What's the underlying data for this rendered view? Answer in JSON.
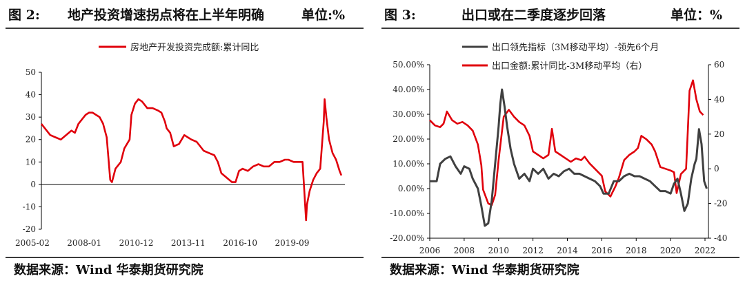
{
  "figures": [
    {
      "number": "图 2:",
      "title": "地产投资增速拐点将在上半年明确",
      "unit": "单位:%",
      "source": "数据来源：Wind 华泰期货研究院"
    },
    {
      "number": "图 3:",
      "title": "出口或在二季度逐步回落",
      "unit": "单位：%",
      "source": "数据来源：Wind 华泰期货研究院"
    }
  ],
  "chart_data": [
    {
      "type": "line",
      "ylim": [
        -20,
        50
      ],
      "y_ticks": [
        "50",
        "40",
        "30",
        "20",
        "10",
        "0",
        "-10",
        "-20"
      ],
      "x_tick_labels": [
        "2005-02",
        "2008-01",
        "2010-12",
        "2013-11",
        "2016-10",
        "2019-09"
      ],
      "legend_position": "top-center",
      "colors": {
        "series": "#e0000b",
        "axis": "#000000"
      },
      "series": [
        {
          "name": "房地产开发投资完成额:累计同比",
          "x": [
            2005.1,
            2005.3,
            2005.6,
            2005.9,
            2006.2,
            2006.5,
            2006.8,
            2007.0,
            2007.2,
            2007.4,
            2007.6,
            2007.8,
            2008.0,
            2008.2,
            2008.4,
            2008.6,
            2008.8,
            2009.0,
            2009.1,
            2009.3,
            2009.6,
            2009.8,
            2010.1,
            2010.2,
            2010.4,
            2010.6,
            2010.8,
            2011.1,
            2011.4,
            2011.7,
            2011.9,
            2012.1,
            2012.2,
            2012.4,
            2012.6,
            2012.9,
            2013.2,
            2013.4,
            2013.6,
            2013.9,
            2014.1,
            2014.3,
            2014.6,
            2014.9,
            2015.1,
            2015.3,
            2015.6,
            2015.9,
            2016.1,
            2016.3,
            2016.5,
            2016.8,
            2017.1,
            2017.4,
            2017.7,
            2018.0,
            2018.3,
            2018.6,
            2018.9,
            2019.1,
            2019.4,
            2019.7,
            2019.9,
            2020.1,
            2020.15,
            2020.3,
            2020.5,
            2020.7,
            2020.9,
            2021.1,
            2021.15,
            2021.25,
            2021.4,
            2021.6,
            2021.8,
            2022.0,
            2022.1
          ],
          "values": [
            27,
            25,
            22,
            21,
            20,
            22,
            24,
            23,
            27,
            29,
            31,
            32,
            32,
            31,
            30,
            27,
            21,
            2,
            1,
            7,
            10,
            16,
            20,
            31,
            36,
            38,
            37,
            34,
            34,
            33,
            32,
            28,
            25,
            23,
            17,
            18,
            22,
            21,
            20,
            19,
            17,
            15,
            14,
            13,
            10,
            5,
            3,
            1,
            1,
            6,
            7,
            6,
            8,
            9,
            8,
            8,
            10,
            10,
            11,
            11,
            10,
            10,
            10,
            -16,
            -9,
            -3,
            2,
            5,
            7,
            28,
            38,
            30,
            20,
            14,
            11,
            6,
            4
          ]
        }
      ]
    },
    {
      "type": "line",
      "ylim": [
        -20,
        50
      ],
      "y2lim": [
        -40,
        60
      ],
      "y_ticks": [
        "50.00%",
        "40.00%",
        "30.00%",
        "20.00%",
        "10.00%",
        "0.00%",
        "-10.00%",
        "-20.00%"
      ],
      "y2_ticks": [
        "60",
        "40",
        "20",
        "0",
        "-20",
        "-40"
      ],
      "x_tick_labels": [
        "2006",
        "2008",
        "2010",
        "2012",
        "2014",
        "2016",
        "2018",
        "2020",
        "2022"
      ],
      "legend_position": "top-center",
      "colors": {
        "series_1": "#404040",
        "series_2": "#e0000b",
        "axis": "#000000"
      },
      "series": [
        {
          "name": "出口领先指标（3M移动平均）-领先6个月",
          "axis": "left",
          "x": [
            2006.0,
            2006.4,
            2006.6,
            2006.9,
            2007.2,
            2007.5,
            2007.8,
            2008.0,
            2008.3,
            2008.5,
            2008.8,
            2009.0,
            2009.2,
            2009.4,
            2009.6,
            2009.8,
            2010.0,
            2010.1,
            2010.2,
            2010.35,
            2010.5,
            2010.7,
            2010.9,
            2011.2,
            2011.5,
            2011.8,
            2012.0,
            2012.3,
            2012.6,
            2012.9,
            2013.2,
            2013.5,
            2013.8,
            2014.1,
            2014.4,
            2014.7,
            2015.0,
            2015.3,
            2015.6,
            2015.9,
            2016.1,
            2016.4,
            2016.7,
            2017.0,
            2017.3,
            2017.6,
            2017.9,
            2018.2,
            2018.5,
            2018.8,
            2019.1,
            2019.4,
            2019.7,
            2020.0,
            2020.2,
            2020.4,
            2020.6,
            2020.8,
            2021.0,
            2021.2,
            2021.4,
            2021.5,
            2021.65,
            2021.8,
            2021.95,
            2022.1
          ],
          "values": [
            3,
            3,
            10,
            12,
            13,
            9,
            6,
            9,
            8,
            4,
            0,
            -7,
            -15,
            -14,
            -5,
            10,
            25,
            34,
            40,
            33,
            25,
            16,
            10,
            4,
            6,
            3,
            8,
            6,
            8,
            4,
            6,
            5,
            7,
            8,
            6,
            6,
            5,
            4,
            3,
            1,
            -2,
            -2,
            3,
            3,
            5,
            6,
            5,
            5,
            4,
            3,
            1,
            -1,
            -1,
            -2,
            2,
            4,
            -2,
            -9,
            -6,
            4,
            10,
            12,
            24,
            18,
            3,
            0
          ]
        },
        {
          "name": "出口金额:累计同比-3M移动平均（右）",
          "axis": "right",
          "x": [
            2006.0,
            2006.3,
            2006.6,
            2006.8,
            2007.0,
            2007.3,
            2007.6,
            2007.9,
            2008.2,
            2008.5,
            2008.8,
            2009.0,
            2009.1,
            2009.4,
            2009.6,
            2009.8,
            2010.0,
            2010.3,
            2010.6,
            2010.9,
            2011.2,
            2011.5,
            2011.8,
            2012.0,
            2012.3,
            2012.6,
            2012.9,
            2013.1,
            2013.3,
            2013.6,
            2013.9,
            2014.2,
            2014.5,
            2014.8,
            2015.0,
            2015.3,
            2015.6,
            2015.9,
            2016.0,
            2016.2,
            2016.5,
            2016.8,
            2017.0,
            2017.3,
            2017.6,
            2017.9,
            2018.1,
            2018.3,
            2018.6,
            2018.9,
            2019.1,
            2019.4,
            2019.7,
            2020.0,
            2020.2,
            2020.35,
            2020.6,
            2020.9,
            2021.0,
            2021.1,
            2021.3,
            2021.5,
            2021.7,
            2021.9
          ],
          "values": [
            28,
            25,
            24,
            26,
            33,
            28,
            26,
            27,
            25,
            22,
            14,
            2,
            -12,
            -20,
            -21,
            -15,
            5,
            30,
            34,
            30,
            27,
            25,
            19,
            10,
            8,
            6,
            8,
            23,
            10,
            8,
            6,
            4,
            6,
            5,
            7,
            3,
            0,
            -3,
            -4,
            -13,
            -16,
            -10,
            -5,
            5,
            8,
            10,
            12,
            19,
            17,
            14,
            10,
            1,
            0,
            -1,
            -2,
            -14,
            -3,
            0,
            22,
            45,
            51,
            40,
            33,
            31
          ]
        }
      ]
    }
  ]
}
